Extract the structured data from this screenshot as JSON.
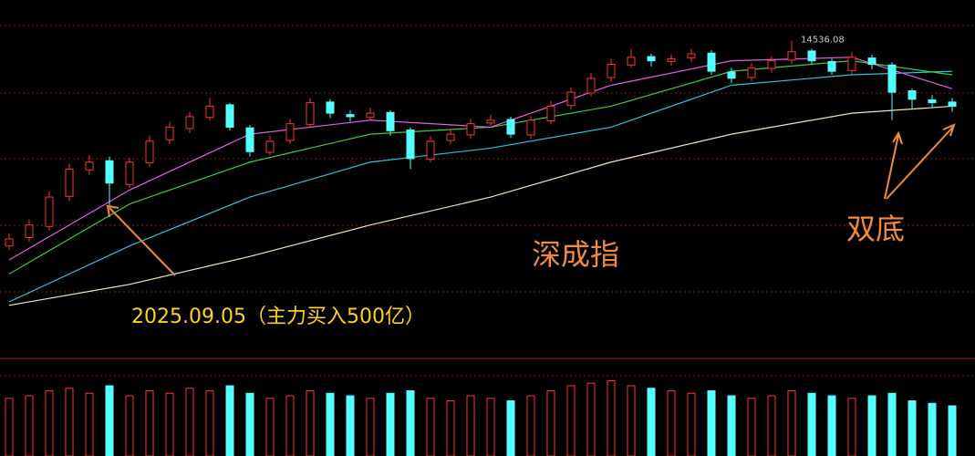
{
  "chart_data": {
    "type": "candlestick",
    "title": "深成指",
    "annotations": [
      "2025.09.05（主力买入500亿）",
      "双底"
    ],
    "open": [
      11600,
      11720,
      11880,
      12310,
      12690,
      12820,
      12480,
      12790,
      13120,
      13280,
      13440,
      13620,
      13290,
      12940,
      13110,
      13340,
      13660,
      13480,
      13440,
      13510,
      13260,
      12840,
      13110,
      13190,
      13360,
      13410,
      13190,
      13390,
      13610,
      13790,
      14010,
      14190,
      14310,
      14240,
      14290,
      14360,
      14090,
      14010,
      14140,
      14260,
      14390,
      14240,
      14110,
      14290,
      14190,
      13820,
      13690,
      13660
    ],
    "high": [
      11780,
      11980,
      12380,
      12780,
      12900,
      12880,
      12860,
      13180,
      13380,
      13520,
      13720,
      13650,
      13330,
      13180,
      13420,
      13720,
      13700,
      13540,
      13580,
      13540,
      13300,
      13170,
      13270,
      13420,
      13480,
      13450,
      13460,
      13680,
      13870,
      14080,
      14280,
      14420,
      14350,
      14340,
      14420,
      14400,
      14150,
      14220,
      14320,
      14536.08,
      14420,
      14280,
      14380,
      14340,
      14230,
      13850,
      13760,
      13720
    ],
    "low": [
      11540,
      11660,
      11820,
      12240,
      12620,
      12180,
      12430,
      12730,
      13060,
      13220,
      13390,
      13250,
      12880,
      12900,
      13060,
      13300,
      13430,
      13380,
      13400,
      13180,
      12700,
      12800,
      13050,
      13140,
      13320,
      13150,
      13130,
      13340,
      13550,
      13740,
      13950,
      14150,
      14170,
      14180,
      14230,
      14050,
      13930,
      13960,
      14080,
      14200,
      14190,
      14050,
      14060,
      14130,
      13400,
      13550,
      13580,
      13520
    ],
    "close": [
      11700,
      11900,
      12300,
      12700,
      12800,
      12500,
      12800,
      13100,
      13300,
      13450,
      13600,
      13300,
      12950,
      13100,
      13350,
      13650,
      13500,
      13450,
      13500,
      13250,
      12850,
      13100,
      13200,
      13350,
      13400,
      13200,
      13400,
      13600,
      13800,
      14000,
      14200,
      14300,
      14250,
      14280,
      14350,
      14100,
      14000,
      14150,
      14250,
      14380,
      14250,
      14100,
      14300,
      14200,
      13800,
      13700,
      13650,
      13600
    ],
    "volume": [
      2300,
      2400,
      2600,
      2700,
      2500,
      2800,
      2400,
      2600,
      2500,
      2700,
      2600,
      2800,
      2500,
      2300,
      2400,
      2600,
      2500,
      2400,
      2300,
      2500,
      2600,
      2300,
      2200,
      2400,
      2300,
      2200,
      2400,
      2600,
      2800,
      2900,
      3000,
      2800,
      2700,
      2600,
      2500,
      2600,
      2400,
      2300,
      2400,
      2600,
      2500,
      2400,
      2300,
      2400,
      2500,
      2200,
      2100,
      2000
    ],
    "ylim": [
      10030,
      15120
    ],
    "vlim": [
      0,
      3200
    ],
    "up_color": "#ff3232",
    "down_color": "#54ffff",
    "ma": [
      {
        "color": "#e8e8c0",
        "x": [
          0,
          6,
          12,
          18,
          24,
          30,
          36,
          42,
          47
        ],
        "values": [
          10750,
          11050,
          11450,
          11900,
          12300,
          12800,
          13200,
          13500,
          13600
        ]
      },
      {
        "color": "#2ec0d8",
        "x": [
          0,
          6,
          12,
          18,
          24,
          30,
          36,
          42,
          47
        ],
        "values": [
          10800,
          11600,
          12300,
          12800,
          13000,
          13300,
          13900,
          14050,
          14100
        ]
      },
      {
        "color": "#3ccc3c",
        "x": [
          0,
          6,
          12,
          18,
          24,
          30,
          36,
          42,
          47
        ],
        "values": [
          11200,
          12200,
          12800,
          13200,
          13300,
          13600,
          14100,
          14250,
          14050
        ]
      },
      {
        "color": "#e060e0",
        "x": [
          0,
          6,
          12,
          18,
          24,
          30,
          36,
          42,
          47
        ],
        "values": [
          11400,
          12400,
          13200,
          13400,
          13300,
          13900,
          14250,
          14300,
          13850
        ]
      }
    ]
  }
}
